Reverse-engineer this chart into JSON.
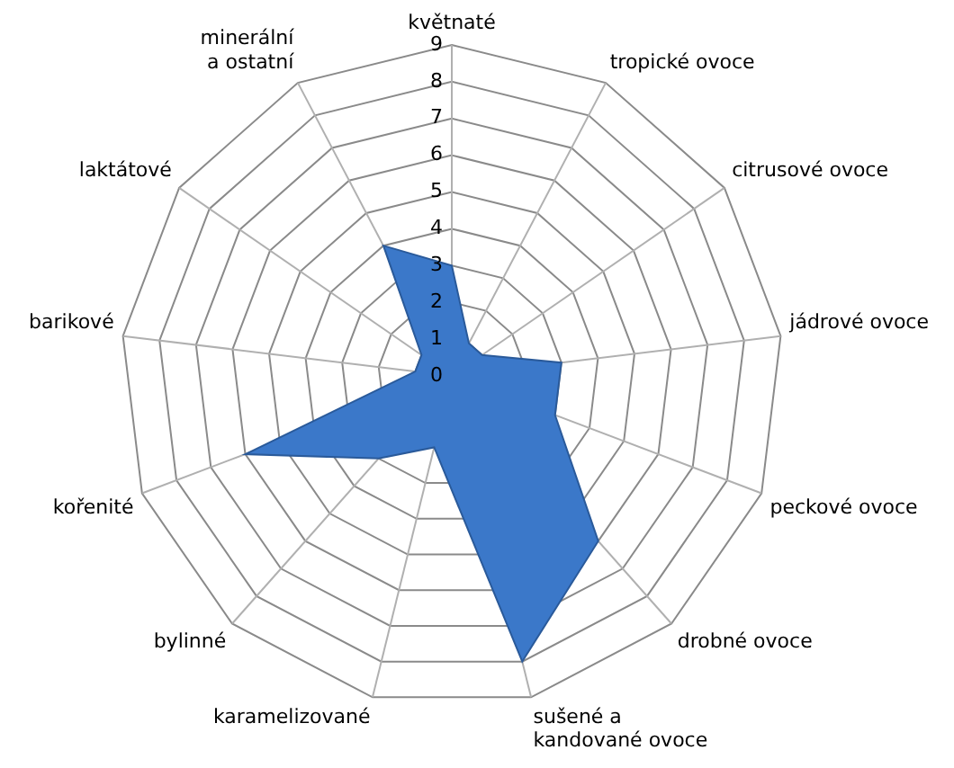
{
  "chart_data": {
    "type": "radar",
    "categories": [
      "květnaté",
      "tropické ovoce",
      "citrusové ovoce",
      "jádrové ovoce",
      "peckové ovoce",
      "drobné ovoce",
      "sušené a kandované ovoce",
      "karamelizované",
      "bylinné",
      "kořenité",
      "barikové",
      "laktátové",
      "minerální a ostatní"
    ],
    "series": [
      {
        "color": "#3b78c9",
        "values": [
          3,
          1,
          1,
          3,
          3,
          6,
          8,
          2,
          3,
          6,
          1,
          1,
          4
        ]
      }
    ],
    "ylim": [
      0,
      9
    ],
    "yticks": [
      0,
      1,
      2,
      3,
      4,
      5,
      6,
      7,
      8,
      9
    ],
    "grid": true,
    "legend": false
  }
}
